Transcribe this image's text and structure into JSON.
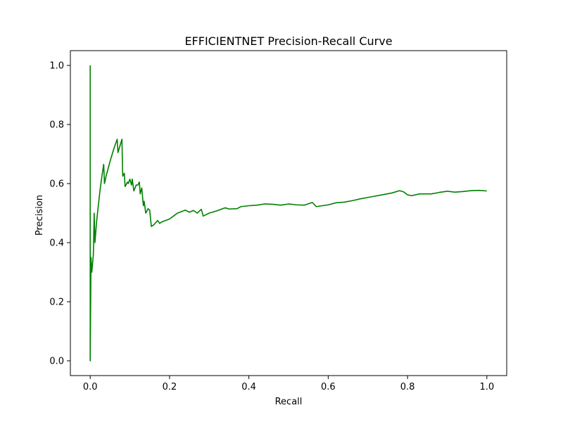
{
  "chart_data": {
    "type": "line",
    "title": "EFFICIENTNET Precision-Recall Curve",
    "xlabel": "Recall",
    "ylabel": "Precision",
    "xlim": [
      -0.05,
      1.05
    ],
    "ylim": [
      -0.05,
      1.05
    ],
    "grid": false,
    "line_color": "#008000",
    "x_ticks": [
      0.0,
      0.2,
      0.4,
      0.6,
      0.8,
      1.0
    ],
    "x_tick_labels": [
      "0.0",
      "0.2",
      "0.4",
      "0.6",
      "0.8",
      "1.0"
    ],
    "y_ticks": [
      0.0,
      0.2,
      0.4,
      0.6,
      0.8,
      1.0
    ],
    "y_tick_labels": [
      "0.0",
      "0.2",
      "0.4",
      "0.6",
      "0.8",
      "1.0"
    ],
    "series": [
      {
        "points": [
          [
            0.0,
            1.0
          ],
          [
            0.0,
            0.0
          ],
          [
            0.002,
            0.35
          ],
          [
            0.004,
            0.3
          ],
          [
            0.008,
            0.36
          ],
          [
            0.01,
            0.5
          ],
          [
            0.012,
            0.4
          ],
          [
            0.016,
            0.47
          ],
          [
            0.02,
            0.52
          ],
          [
            0.025,
            0.58
          ],
          [
            0.03,
            0.63
          ],
          [
            0.034,
            0.665
          ],
          [
            0.036,
            0.6
          ],
          [
            0.04,
            0.625
          ],
          [
            0.05,
            0.675
          ],
          [
            0.06,
            0.72
          ],
          [
            0.068,
            0.75
          ],
          [
            0.07,
            0.705
          ],
          [
            0.08,
            0.75
          ],
          [
            0.082,
            0.625
          ],
          [
            0.086,
            0.635
          ],
          [
            0.088,
            0.59
          ],
          [
            0.094,
            0.605
          ],
          [
            0.096,
            0.6
          ],
          [
            0.1,
            0.615
          ],
          [
            0.104,
            0.595
          ],
          [
            0.106,
            0.615
          ],
          [
            0.11,
            0.575
          ],
          [
            0.116,
            0.595
          ],
          [
            0.12,
            0.595
          ],
          [
            0.124,
            0.605
          ],
          [
            0.126,
            0.565
          ],
          [
            0.13,
            0.585
          ],
          [
            0.134,
            0.525
          ],
          [
            0.136,
            0.54
          ],
          [
            0.14,
            0.5
          ],
          [
            0.146,
            0.515
          ],
          [
            0.15,
            0.51
          ],
          [
            0.154,
            0.455
          ],
          [
            0.16,
            0.46
          ],
          [
            0.17,
            0.475
          ],
          [
            0.175,
            0.465
          ],
          [
            0.18,
            0.47
          ],
          [
            0.19,
            0.475
          ],
          [
            0.2,
            0.48
          ],
          [
            0.21,
            0.49
          ],
          [
            0.22,
            0.5
          ],
          [
            0.23,
            0.505
          ],
          [
            0.24,
            0.51
          ],
          [
            0.25,
            0.503
          ],
          [
            0.26,
            0.509
          ],
          [
            0.27,
            0.5
          ],
          [
            0.28,
            0.513
          ],
          [
            0.285,
            0.49
          ],
          [
            0.3,
            0.5
          ],
          [
            0.32,
            0.508
          ],
          [
            0.34,
            0.518
          ],
          [
            0.35,
            0.514
          ],
          [
            0.37,
            0.515
          ],
          [
            0.38,
            0.522
          ],
          [
            0.4,
            0.525
          ],
          [
            0.42,
            0.527
          ],
          [
            0.44,
            0.531
          ],
          [
            0.46,
            0.53
          ],
          [
            0.48,
            0.527
          ],
          [
            0.5,
            0.531
          ],
          [
            0.52,
            0.528
          ],
          [
            0.54,
            0.527
          ],
          [
            0.56,
            0.536
          ],
          [
            0.57,
            0.522
          ],
          [
            0.6,
            0.528
          ],
          [
            0.62,
            0.535
          ],
          [
            0.64,
            0.537
          ],
          [
            0.66,
            0.542
          ],
          [
            0.68,
            0.548
          ],
          [
            0.7,
            0.553
          ],
          [
            0.72,
            0.558
          ],
          [
            0.74,
            0.563
          ],
          [
            0.76,
            0.568
          ],
          [
            0.78,
            0.576
          ],
          [
            0.79,
            0.572
          ],
          [
            0.8,
            0.562
          ],
          [
            0.81,
            0.559
          ],
          [
            0.83,
            0.565
          ],
          [
            0.86,
            0.565
          ],
          [
            0.88,
            0.57
          ],
          [
            0.9,
            0.574
          ],
          [
            0.92,
            0.571
          ],
          [
            0.94,
            0.573
          ],
          [
            0.96,
            0.576
          ],
          [
            0.98,
            0.577
          ],
          [
            1.0,
            0.575
          ]
        ]
      }
    ]
  }
}
